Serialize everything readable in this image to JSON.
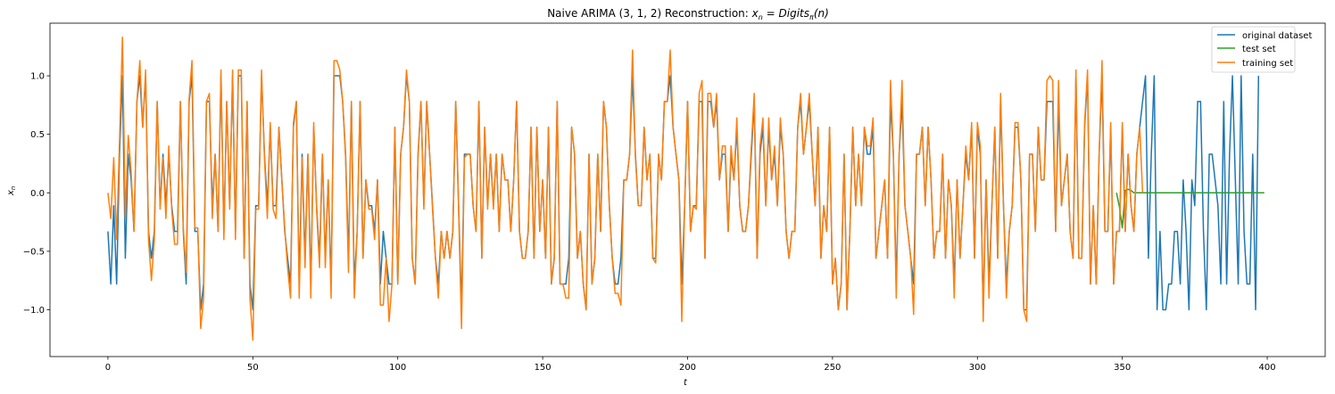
{
  "chart_data": {
    "type": "line",
    "title": "Naive ARIMA (3, 1, 2) Reconstruction: x_n = Digits_π(n)",
    "title_parts": {
      "prefix": "Naive ARIMA (3, 1, 2) Reconstruction: ",
      "x": "x",
      "sub_n": "n",
      "eq": " = ",
      "fn": "Digits",
      "sub_pi": "π",
      "arg": "(n)"
    },
    "xlabel": "t",
    "ylabel": "x_n",
    "ylabel_parts": {
      "base": "x",
      "sub": "n"
    },
    "xlim": [
      -20,
      420
    ],
    "ylim": [
      -1.4,
      1.45
    ],
    "xticks": [
      0,
      50,
      100,
      150,
      200,
      250,
      300,
      350,
      400
    ],
    "yticks": [
      -1.0,
      -0.5,
      0.0,
      0.5,
      1.0
    ],
    "xtick_labels": [
      "0",
      "50",
      "100",
      "150",
      "200",
      "250",
      "300",
      "350",
      "400"
    ],
    "ytick_labels": [
      "−1.0",
      "−0.5",
      "0.0",
      "0.5",
      "1.0"
    ],
    "grid": false,
    "legend_position": "top-right",
    "series": [
      {
        "name": "original dataset",
        "color": "#1f77b4",
        "x_start": 0,
        "values": [
          -0.33,
          -0.78,
          -0.11,
          -0.78,
          0.33,
          1.0,
          -0.56,
          0.33,
          0.11,
          -0.33,
          0.78,
          1.0,
          0.56,
          1.0,
          -0.33,
          -0.56,
          -0.33,
          0.78,
          -0.11,
          0.33,
          -0.11,
          0.33,
          -0.11,
          -0.33,
          -0.33,
          0.78,
          -0.33,
          -0.78,
          0.78,
          1.0,
          -0.33,
          -0.33,
          -1.0,
          -0.78,
          0.78,
          0.78,
          -0.11,
          0.33,
          -0.33,
          1.0,
          -0.33,
          0.78,
          -0.11,
          1.0,
          -0.33,
          1.0,
          1.0,
          -0.56,
          0.78,
          -0.78,
          -1.0,
          -0.11,
          -0.11,
          1.0,
          0.33,
          -0.11,
          0.56,
          -0.11,
          -0.11,
          0.56,
          0.11,
          -0.33,
          -0.56,
          -0.78,
          0.56,
          0.78,
          -0.78,
          0.33,
          -0.56,
          0.33,
          -0.78,
          0.56,
          -0.11,
          -0.56,
          0.33,
          -0.56,
          0.11,
          -0.78,
          1.0,
          1.0,
          1.0,
          0.78,
          0.33,
          -0.56,
          0.78,
          -0.78,
          -0.33,
          0.78,
          -0.56,
          0.11,
          -0.11,
          -0.11,
          -0.33,
          0.11,
          -0.78,
          -0.33,
          -0.56,
          -0.78,
          -0.78,
          0.56,
          -0.78,
          0.33,
          0.56,
          1.0,
          0.78,
          -0.56,
          -0.78,
          0.33,
          0.78,
          -0.11,
          0.78,
          0.33,
          -0.11,
          -0.56,
          -0.78,
          -0.33,
          -0.56,
          -0.33,
          -0.56,
          -0.33,
          0.78,
          -0.11,
          -1.0,
          0.33,
          0.33,
          0.33,
          -0.11,
          -0.33,
          0.78,
          -0.56,
          0.56,
          -0.11,
          0.33,
          -0.11,
          0.33,
          -0.33,
          0.33,
          0.11,
          0.11,
          -0.33,
          0.11,
          0.78,
          -0.33,
          -0.56,
          -0.56,
          -0.33,
          0.56,
          -0.56,
          0.56,
          -0.33,
          0.11,
          -0.56,
          0.56,
          -0.78,
          -0.56,
          0.78,
          -0.78,
          -0.78,
          -0.78,
          -0.56,
          0.56,
          0.33,
          -0.56,
          -0.33,
          -0.78,
          -1.0,
          0.33,
          -0.78,
          -0.56,
          0.33,
          -0.33,
          0.78,
          0.56,
          -0.11,
          -0.56,
          -0.78,
          -0.78,
          -0.56,
          0.11,
          0.11,
          0.33,
          1.0,
          0.33,
          -0.11,
          -0.11,
          0.56,
          0.11,
          0.33,
          -0.56,
          -0.56,
          0.33,
          0.11,
          0.78,
          0.78,
          1.0,
          0.56,
          0.33,
          0.11,
          -0.78,
          -0.11,
          0.78,
          -0.33,
          -0.11,
          -0.11,
          0.78,
          0.78,
          -0.56,
          0.78,
          0.78,
          0.56,
          0.78,
          0.11,
          0.33,
          0.33,
          -0.33,
          0.33,
          0.11,
          0.56,
          -0.11,
          -0.33,
          -0.33,
          -0.11,
          0.33,
          0.78,
          -0.56,
          0.33,
          0.56,
          -0.11,
          0.56,
          0.11,
          0.33,
          -0.11,
          0.56,
          0.33,
          -0.33,
          -0.56,
          -0.33,
          -0.33,
          0.56,
          0.78,
          0.33,
          0.56,
          0.78,
          0.33,
          -0.11,
          0.56,
          -0.56,
          -0.11,
          -0.33,
          0.56,
          -0.78,
          -0.56,
          -1.0,
          -0.78,
          0.33,
          -1.0,
          -0.33,
          0.56,
          -0.11,
          0.33,
          -0.11,
          0.56,
          0.33,
          0.33,
          0.56,
          -0.56,
          -0.33,
          -0.11,
          0.11,
          -0.56,
          0.78,
          0.33,
          -0.78,
          0.33,
          0.78,
          -0.11,
          -0.33,
          -0.56,
          -0.78,
          0.33,
          0.33,
          0.56,
          -0.11,
          0.56,
          0.11,
          -0.56,
          -0.33,
          -0.33,
          0.33,
          -0.56,
          0.11,
          -0.11,
          -0.78,
          0.11,
          -0.56,
          -0.11,
          0.33,
          0.11,
          0.56,
          -0.56,
          0.56,
          0.33,
          -1.0,
          0.11,
          -0.78,
          -0.11,
          0.56,
          -0.56,
          0.78,
          -0.11,
          -0.78,
          -0.33,
          -0.11,
          0.56,
          0.56,
          0.11,
          -1.0,
          -1.0,
          0.33,
          0.33,
          -0.33,
          0.56,
          0.11,
          0.11,
          0.78,
          0.78,
          0.78,
          -0.33,
          0.78,
          -0.11,
          0.11,
          0.33,
          -0.33,
          -0.56,
          1.0,
          -0.56,
          -0.56,
          0.56,
          1.0,
          -0.78,
          -0.11,
          -0.78,
          0.33,
          1.0,
          -0.33,
          -0.33,
          0.56,
          -0.78,
          -0.33,
          -0.33,
          0.56,
          -0.33,
          0.33,
          -0.11,
          -0.33,
          0.33,
          0.56,
          0.78,
          1.0,
          -0.56,
          0.33,
          1.0,
          -1.0,
          -0.33,
          -1.0,
          -1.0,
          -0.78,
          -0.78,
          -0.33,
          -0.33,
          -0.78,
          0.11,
          -0.33,
          -1.0,
          0.11,
          -0.11,
          0.78,
          0.78,
          -0.33,
          -1.0,
          0.33,
          0.33,
          0.11,
          -0.11,
          -0.78,
          0.78,
          -0.78,
          0.33,
          1.0,
          0.11,
          -0.78,
          1.0,
          -0.33,
          -0.78,
          -0.78,
          0.33,
          -1.0,
          1.0
        ]
      },
      {
        "name": "test set",
        "color": "#2ca02c",
        "x_start": 348,
        "values": [
          0.0,
          -0.12,
          -0.3,
          0.02,
          0.03,
          0.02,
          0.0,
          0.0,
          0.0,
          0.0,
          0.0,
          0.0,
          0.0,
          0.0,
          0.0,
          0.0,
          0.0,
          0.0,
          0.0,
          0.0,
          0.0,
          0.0,
          0.0,
          0.0,
          0.0,
          0.0,
          0.0,
          0.0,
          0.0,
          0.0,
          0.0,
          0.0,
          0.0,
          0.0,
          0.0,
          0.0,
          0.0,
          0.0,
          0.0,
          0.0,
          0.0,
          0.0,
          0.0,
          0.0,
          0.0,
          0.0,
          0.0,
          0.0,
          0.0,
          0.0,
          0.0,
          0.0
        ]
      },
      {
        "name": "training set",
        "color": "#ff7f0e",
        "x_start": 0,
        "values": [
          0.0,
          -0.22,
          0.3,
          -0.4,
          0.44,
          1.33,
          -0.22,
          0.49,
          0.18,
          -0.33,
          0.78,
          1.13,
          0.56,
          1.05,
          -0.4,
          -0.75,
          -0.4,
          0.78,
          -0.14,
          0.3,
          -0.22,
          0.4,
          -0.14,
          -0.44,
          -0.44,
          0.78,
          -0.3,
          -0.68,
          0.8,
          1.13,
          -0.3,
          -0.3,
          -1.16,
          -0.9,
          0.78,
          0.85,
          -0.22,
          0.33,
          -0.33,
          1.05,
          -0.4,
          0.78,
          -0.14,
          1.05,
          -0.4,
          1.05,
          1.05,
          -0.56,
          0.78,
          -0.9,
          -1.26,
          -0.14,
          -0.14,
          1.05,
          0.3,
          -0.22,
          0.6,
          -0.14,
          -0.22,
          0.56,
          0.11,
          -0.3,
          -0.64,
          -0.9,
          0.6,
          0.78,
          -0.9,
          0.3,
          -0.64,
          0.33,
          -0.9,
          0.6,
          -0.14,
          -0.64,
          0.33,
          -0.64,
          0.11,
          -0.9,
          1.13,
          1.13,
          1.05,
          0.78,
          0.3,
          -0.68,
          0.78,
          -0.9,
          -0.33,
          0.78,
          -0.56,
          0.11,
          -0.14,
          -0.14,
          -0.4,
          0.11,
          -0.96,
          -0.96,
          -0.56,
          -1.1,
          -0.78,
          0.56,
          -0.78,
          0.33,
          0.56,
          1.05,
          0.78,
          -0.56,
          -0.78,
          0.3,
          0.78,
          -0.14,
          0.78,
          0.33,
          -0.14,
          -0.56,
          -0.9,
          -0.33,
          -0.56,
          -0.33,
          -0.56,
          -0.33,
          0.78,
          -0.14,
          -1.16,
          0.3,
          0.33,
          0.33,
          -0.11,
          -0.33,
          0.78,
          -0.56,
          0.56,
          -0.14,
          0.33,
          -0.14,
          0.33,
          -0.33,
          0.33,
          0.11,
          0.11,
          -0.33,
          0.11,
          0.78,
          -0.33,
          -0.56,
          -0.56,
          -0.33,
          0.56,
          -0.56,
          0.56,
          -0.33,
          0.11,
          -0.56,
          0.56,
          -0.78,
          -0.56,
          0.78,
          -0.78,
          -0.78,
          -0.9,
          -0.9,
          0.56,
          0.33,
          -0.56,
          -0.33,
          -0.78,
          -1.0,
          0.33,
          -0.78,
          -0.56,
          0.33,
          -0.33,
          0.78,
          0.56,
          -0.11,
          -0.56,
          -0.86,
          -0.86,
          -0.96,
          0.11,
          0.11,
          0.33,
          1.22,
          0.3,
          -0.11,
          -0.11,
          0.56,
          0.11,
          0.33,
          -0.56,
          -0.6,
          0.33,
          0.11,
          0.78,
          0.78,
          1.22,
          0.56,
          0.33,
          0.11,
          -1.1,
          -0.11,
          0.78,
          -0.33,
          -0.11,
          -0.14,
          0.85,
          0.96,
          -0.56,
          0.85,
          0.85,
          0.56,
          0.85,
          0.11,
          0.4,
          0.4,
          -0.33,
          0.4,
          0.11,
          0.64,
          -0.11,
          -0.33,
          -0.33,
          -0.11,
          0.4,
          0.85,
          -0.56,
          0.4,
          0.64,
          -0.11,
          0.64,
          0.11,
          0.4,
          -0.11,
          0.64,
          0.33,
          -0.33,
          -0.56,
          -0.33,
          -0.33,
          0.56,
          0.85,
          0.33,
          0.56,
          0.85,
          0.33,
          -0.11,
          0.56,
          -0.56,
          -0.11,
          -0.33,
          0.56,
          -0.78,
          -0.56,
          -1.0,
          -0.78,
          0.33,
          -1.0,
          -0.33,
          0.56,
          -0.11,
          0.33,
          -0.11,
          0.56,
          0.4,
          0.4,
          0.64,
          -0.56,
          -0.33,
          -0.11,
          0.11,
          -0.56,
          0.96,
          0.33,
          -0.9,
          0.33,
          0.96,
          -0.11,
          -0.33,
          -0.56,
          -1.04,
          0.33,
          0.33,
          0.56,
          -0.11,
          0.56,
          0.11,
          -0.56,
          -0.33,
          -0.33,
          0.33,
          -0.56,
          0.11,
          -0.11,
          -0.9,
          0.11,
          -0.56,
          -0.11,
          0.4,
          0.11,
          0.6,
          -0.56,
          0.6,
          0.4,
          -1.1,
          0.11,
          -0.9,
          -0.11,
          0.56,
          -0.56,
          0.85,
          -0.11,
          -0.9,
          -0.33,
          -0.11,
          0.6,
          0.6,
          0.11,
          -1.0,
          -1.1,
          0.33,
          0.33,
          -0.33,
          0.56,
          0.11,
          0.11,
          0.96,
          1.0,
          0.96,
          -0.33,
          0.96,
          -0.11,
          0.11,
          0.33,
          -0.33,
          -0.56,
          1.05,
          -0.56,
          -0.56,
          0.6,
          1.05,
          -0.78,
          -0.11,
          -0.78,
          0.33,
          1.13,
          -0.33,
          -0.33,
          0.6,
          -0.78,
          -0.33,
          -0.33,
          0.6,
          -0.33,
          0.33,
          -0.11,
          -0.33,
          0.33,
          0.56,
          0.0
        ]
      }
    ]
  }
}
